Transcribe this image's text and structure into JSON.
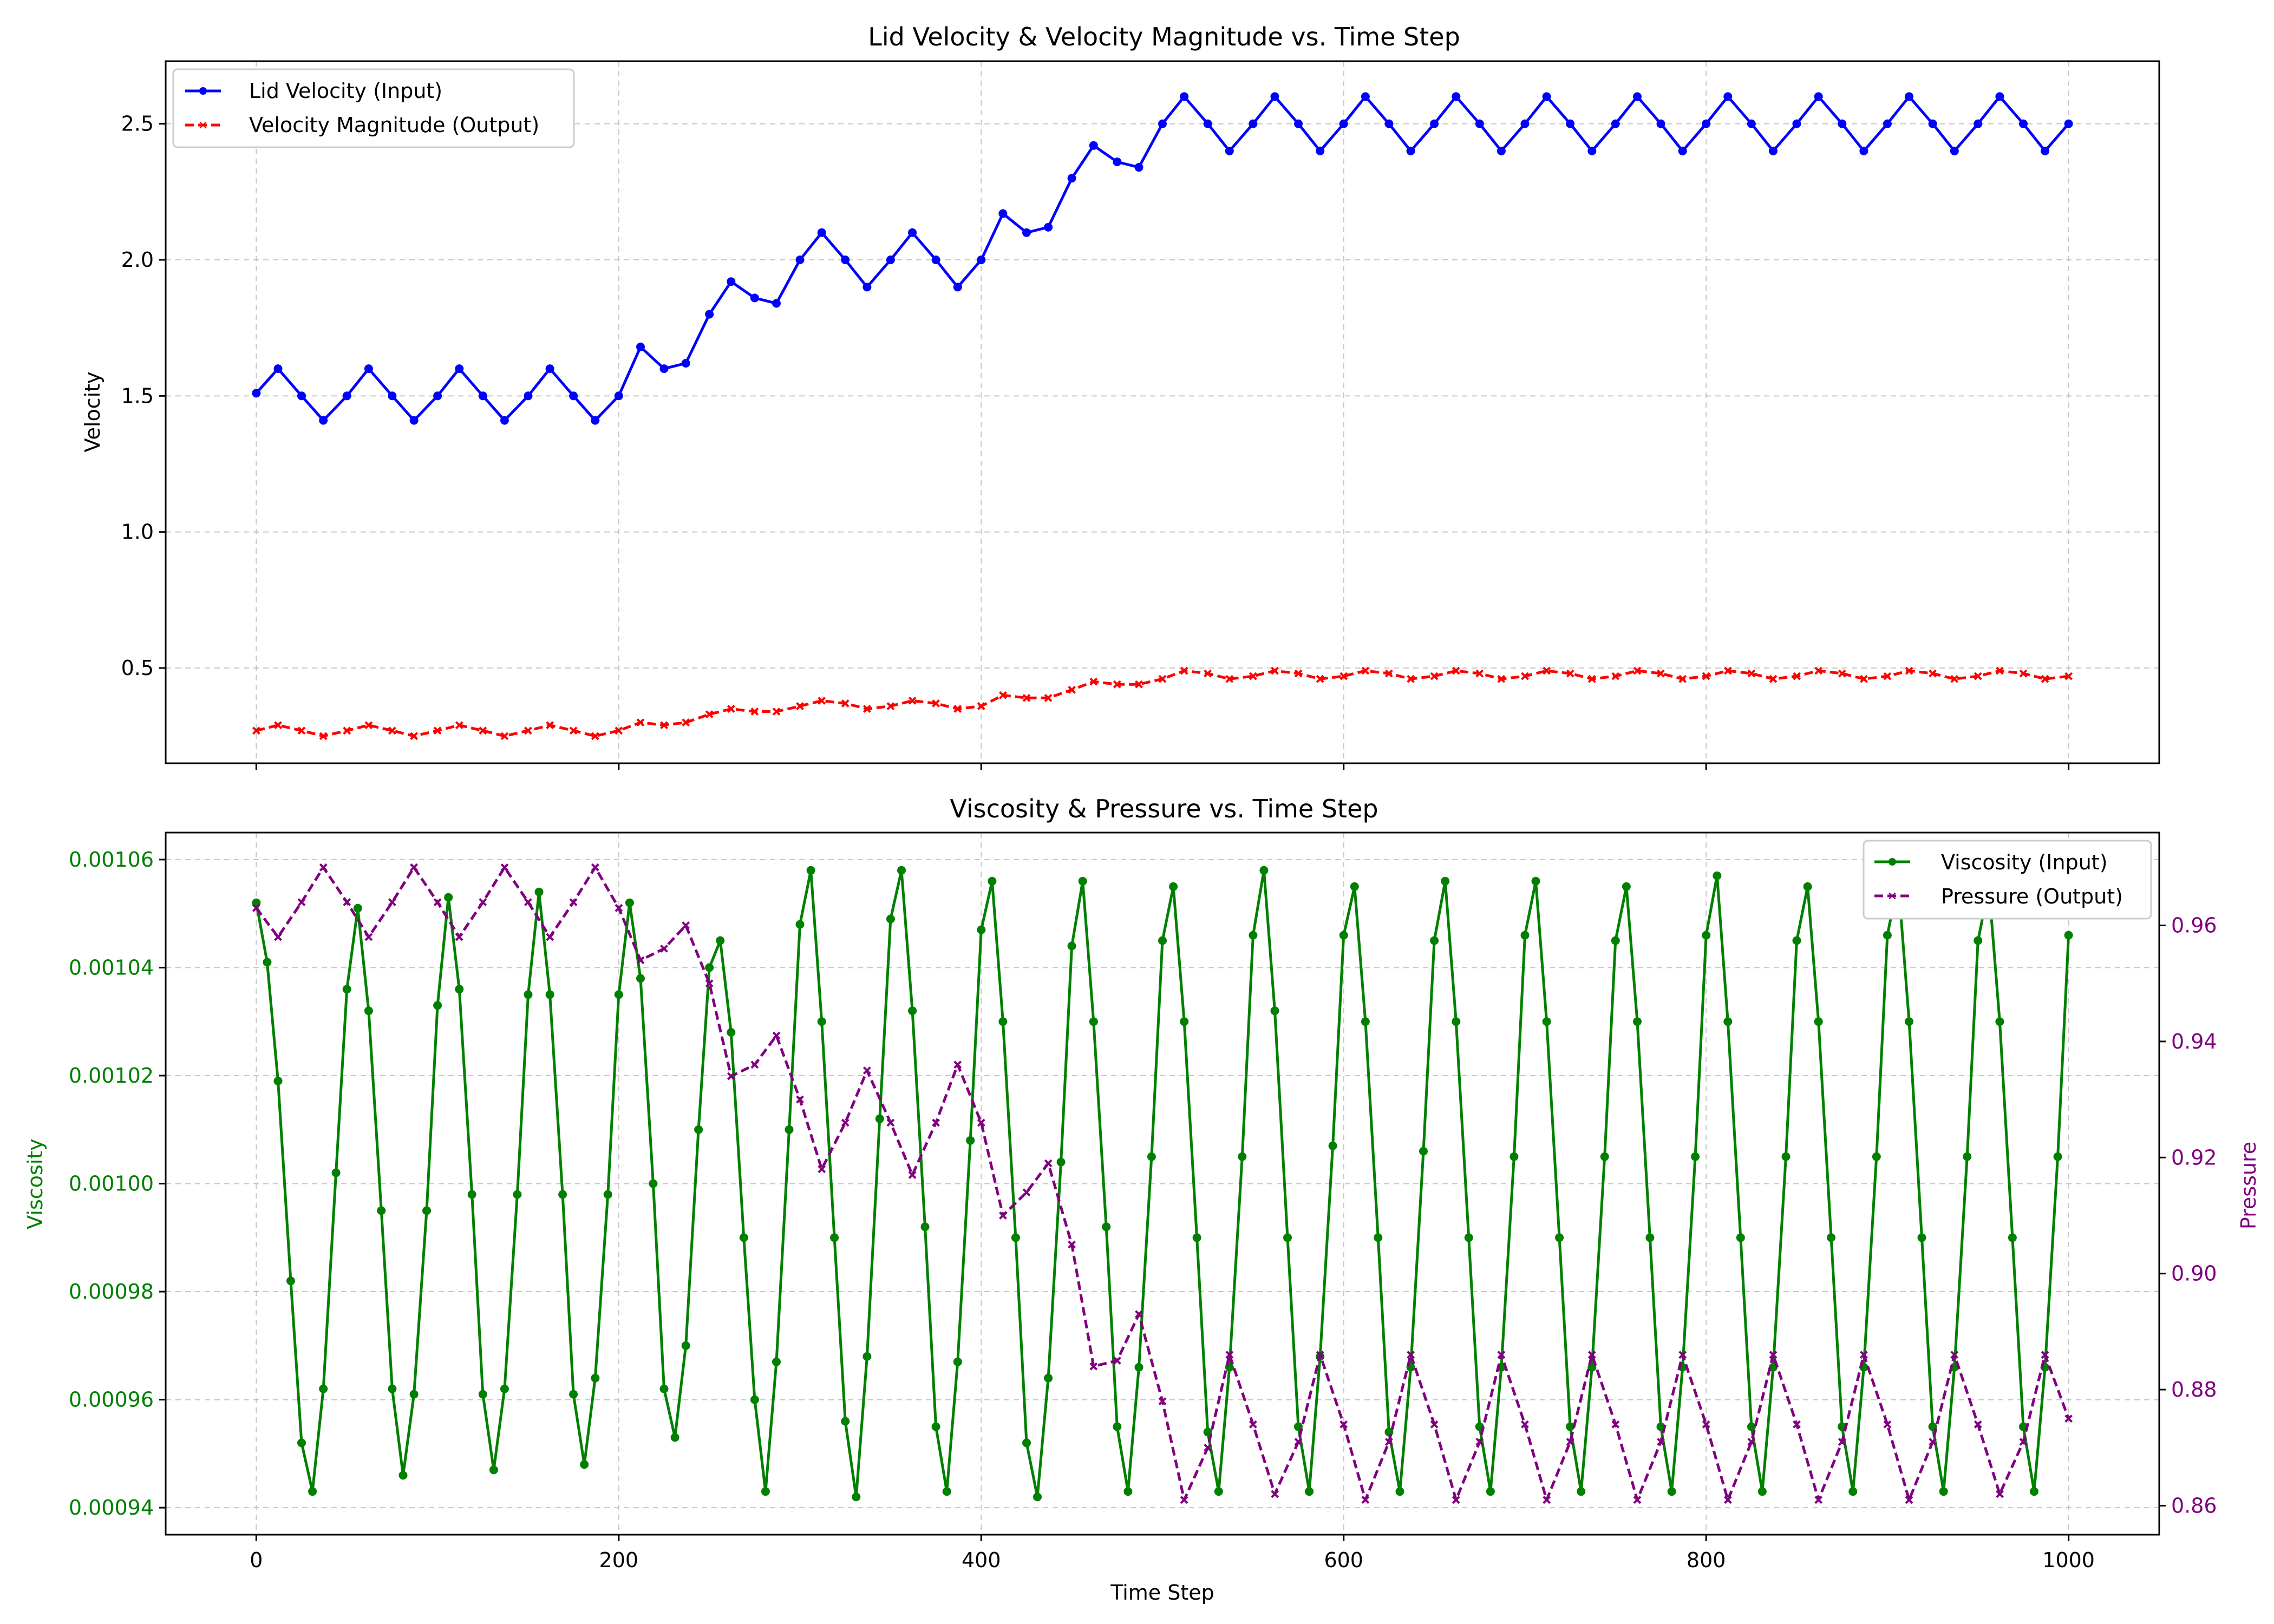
{
  "chart_data": [
    {
      "type": "line",
      "title": "Lid Velocity & Velocity Magnitude vs. Time Step",
      "xlabel": "",
      "ylabel": "Velocity",
      "xlim": [
        -50,
        1050
      ],
      "ylim": [
        0.15,
        2.73
      ],
      "xticks": [
        0,
        200,
        400,
        600,
        800,
        1000
      ],
      "yticks": [
        0.5,
        1.0,
        1.5,
        2.0,
        2.5
      ],
      "ytick_labels": [
        "0.5",
        "1.0",
        "1.5",
        "2.0",
        "2.5"
      ],
      "grid": true,
      "legend": "top-left",
      "series": [
        {
          "name": "Lid Velocity (Input)",
          "color": "#0000ff",
          "marker": "dot",
          "linestyle": "solid",
          "x": [
            0,
            12,
            25,
            37,
            50,
            62,
            75,
            87,
            100,
            112,
            125,
            137,
            150,
            162,
            175,
            187,
            200,
            212,
            225,
            237,
            250,
            262,
            275,
            287,
            300,
            312,
            325,
            337,
            350,
            362,
            375,
            387,
            400,
            412,
            425,
            437,
            450,
            462,
            475,
            487,
            500,
            512,
            525,
            537,
            550,
            562,
            575,
            587,
            600,
            612,
            625,
            637,
            650,
            662,
            675,
            687,
            700,
            712,
            725,
            737,
            750,
            762,
            775,
            787,
            800,
            812,
            825,
            837,
            850,
            862,
            875,
            887,
            900,
            912,
            925,
            937,
            950,
            962,
            975,
            987,
            1000
          ],
          "values": [
            1.51,
            1.6,
            1.5,
            1.41,
            1.5,
            1.6,
            1.5,
            1.41,
            1.5,
            1.6,
            1.5,
            1.41,
            1.5,
            1.6,
            1.5,
            1.41,
            1.5,
            1.68,
            1.6,
            1.62,
            1.8,
            1.92,
            1.86,
            1.84,
            2.0,
            2.1,
            2.0,
            1.9,
            2.0,
            2.1,
            2.0,
            1.9,
            2.0,
            2.17,
            2.1,
            2.12,
            2.3,
            2.42,
            2.36,
            2.34,
            2.5,
            2.6,
            2.5,
            2.4,
            2.5,
            2.6,
            2.5,
            2.4,
            2.5,
            2.6,
            2.5,
            2.4,
            2.5,
            2.6,
            2.5,
            2.4,
            2.5,
            2.6,
            2.5,
            2.4,
            2.5,
            2.6,
            2.5,
            2.4,
            2.5,
            2.6,
            2.5,
            2.4,
            2.5,
            2.6,
            2.5,
            2.4,
            2.5,
            2.6,
            2.5,
            2.4,
            2.5,
            2.6,
            2.5,
            2.4,
            2.5
          ]
        },
        {
          "name": "Velocity Magnitude (Output)",
          "color": "#ff0000",
          "marker": "x",
          "linestyle": "dashed",
          "x": [
            0,
            12,
            25,
            37,
            50,
            62,
            75,
            87,
            100,
            112,
            125,
            137,
            150,
            162,
            175,
            187,
            200,
            212,
            225,
            237,
            250,
            262,
            275,
            287,
            300,
            312,
            325,
            337,
            350,
            362,
            375,
            387,
            400,
            412,
            425,
            437,
            450,
            462,
            475,
            487,
            500,
            512,
            525,
            537,
            550,
            562,
            575,
            587,
            600,
            612,
            625,
            637,
            650,
            662,
            675,
            687,
            700,
            712,
            725,
            737,
            750,
            762,
            775,
            787,
            800,
            812,
            825,
            837,
            850,
            862,
            875,
            887,
            900,
            912,
            925,
            937,
            950,
            962,
            975,
            987,
            1000
          ],
          "values": [
            0.27,
            0.29,
            0.27,
            0.25,
            0.27,
            0.29,
            0.27,
            0.25,
            0.27,
            0.29,
            0.27,
            0.25,
            0.27,
            0.29,
            0.27,
            0.25,
            0.27,
            0.3,
            0.29,
            0.3,
            0.33,
            0.35,
            0.34,
            0.34,
            0.36,
            0.38,
            0.37,
            0.35,
            0.36,
            0.38,
            0.37,
            0.35,
            0.36,
            0.4,
            0.39,
            0.39,
            0.42,
            0.45,
            0.44,
            0.44,
            0.46,
            0.49,
            0.48,
            0.46,
            0.47,
            0.49,
            0.48,
            0.46,
            0.47,
            0.49,
            0.48,
            0.46,
            0.47,
            0.49,
            0.48,
            0.46,
            0.47,
            0.49,
            0.48,
            0.46,
            0.47,
            0.49,
            0.48,
            0.46,
            0.47,
            0.49,
            0.48,
            0.46,
            0.47,
            0.49,
            0.48,
            0.46,
            0.47,
            0.49,
            0.48,
            0.46,
            0.47,
            0.49,
            0.48,
            0.46,
            0.47
          ]
        }
      ]
    },
    {
      "type": "line",
      "title": "Viscosity & Pressure vs. Time Step",
      "xlabel": "Time Step",
      "ylabel": "Viscosity",
      "y2label": "Pressure",
      "xlim": [
        -50,
        1050
      ],
      "ylim": [
        0.000935,
        0.001065
      ],
      "y2lim": [
        0.855,
        0.976
      ],
      "xticks": [
        0,
        200,
        400,
        600,
        800,
        1000
      ],
      "yticks": [
        0.00094,
        0.00096,
        0.00098,
        0.001,
        0.00102,
        0.00104,
        0.00106
      ],
      "ytick_labels": [
        "0.00094",
        "0.00096",
        "0.00098",
        "0.00100",
        "0.00102",
        "0.00104",
        "0.00106"
      ],
      "y2ticks": [
        0.86,
        0.88,
        0.9,
        0.92,
        0.94,
        0.96
      ],
      "y2tick_labels": [
        "0.86",
        "0.88",
        "0.90",
        "0.92",
        "0.94",
        "0.96"
      ],
      "grid": true,
      "legend": "top-right",
      "series": [
        {
          "name": "Viscosity (Input)",
          "axis": "left",
          "color": "#008000",
          "marker": "dot",
          "linestyle": "solid",
          "x": [
            0,
            6,
            12,
            19,
            25,
            31,
            37,
            44,
            50,
            56,
            62,
            69,
            75,
            81,
            87,
            94,
            100,
            106,
            112,
            119,
            125,
            131,
            137,
            144,
            150,
            156,
            162,
            169,
            175,
            181,
            187,
            194,
            200,
            206,
            212,
            219,
            225,
            231,
            237,
            244,
            250,
            256,
            262,
            269,
            275,
            281,
            287,
            294,
            300,
            306,
            312,
            319,
            325,
            331,
            337,
            344,
            350,
            356,
            362,
            369,
            375,
            381,
            387,
            394,
            400,
            406,
            412,
            419,
            425,
            431,
            437,
            444,
            450,
            456,
            462,
            469,
            475,
            481,
            487,
            494,
            500,
            506,
            512,
            519,
            525,
            531,
            537,
            544,
            550,
            556,
            562,
            569,
            575,
            581,
            587,
            594,
            600,
            606,
            612,
            619,
            625,
            631,
            637,
            644,
            650,
            656,
            662,
            669,
            675,
            681,
            687,
            694,
            700,
            706,
            712,
            719,
            725,
            731,
            737,
            744,
            750,
            756,
            762,
            769,
            775,
            781,
            787,
            794,
            800,
            806,
            812,
            819,
            825,
            831,
            837,
            844,
            850,
            856,
            862,
            869,
            875,
            881,
            887,
            894,
            900,
            906,
            912,
            919,
            925,
            931,
            937,
            944,
            950,
            956,
            962,
            969,
            975,
            981,
            987,
            994,
            1000
          ],
          "values": [
            0.001052,
            0.001041,
            0.001019,
            0.000982,
            0.000952,
            0.000943,
            0.000962,
            0.001002,
            0.001036,
            0.001051,
            0.001032,
            0.000995,
            0.000962,
            0.000946,
            0.000961,
            0.000995,
            0.001033,
            0.001053,
            0.001036,
            0.000998,
            0.000961,
            0.000947,
            0.000962,
            0.000998,
            0.001035,
            0.001054,
            0.001035,
            0.000998,
            0.000961,
            0.000948,
            0.000964,
            0.000998,
            0.001035,
            0.001052,
            0.001038,
            0.001,
            0.000962,
            0.000953,
            0.00097,
            0.00101,
            0.00104,
            0.001045,
            0.001028,
            0.00099,
            0.00096,
            0.000943,
            0.000967,
            0.00101,
            0.001048,
            0.001058,
            0.00103,
            0.00099,
            0.000956,
            0.000942,
            0.000968,
            0.001012,
            0.001049,
            0.001058,
            0.001032,
            0.000992,
            0.000955,
            0.000943,
            0.000967,
            0.001008,
            0.001047,
            0.001056,
            0.00103,
            0.00099,
            0.000952,
            0.000942,
            0.000964,
            0.001004,
            0.001044,
            0.001056,
            0.00103,
            0.000992,
            0.000955,
            0.000943,
            0.000966,
            0.001005,
            0.001045,
            0.001055,
            0.00103,
            0.00099,
            0.000954,
            0.000943,
            0.000966,
            0.001005,
            0.001046,
            0.001058,
            0.001032,
            0.00099,
            0.000955,
            0.000943,
            0.000968,
            0.001007,
            0.001046,
            0.001055,
            0.00103,
            0.00099,
            0.000954,
            0.000943,
            0.000966,
            0.001006,
            0.001045,
            0.001056,
            0.00103,
            0.00099,
            0.000955,
            0.000943,
            0.000966,
            0.001005,
            0.001046,
            0.001056,
            0.00103,
            0.00099,
            0.000955,
            0.000943,
            0.000966,
            0.001005,
            0.001045,
            0.001055,
            0.00103,
            0.00099,
            0.000955,
            0.000943,
            0.000966,
            0.001005,
            0.001046,
            0.001057,
            0.00103,
            0.00099,
            0.000955,
            0.000943,
            0.000966,
            0.001005,
            0.001045,
            0.001055,
            0.00103,
            0.00099,
            0.000955,
            0.000943,
            0.000966,
            0.001005,
            0.001046,
            0.001056,
            0.00103,
            0.00099,
            0.000955,
            0.000943,
            0.000966,
            0.001005,
            0.001045,
            0.001055,
            0.00103,
            0.00099,
            0.000955,
            0.000943,
            0.000966,
            0.001005,
            0.001046
          ]
        },
        {
          "name": "Pressure (Output)",
          "axis": "right",
          "color": "#800080",
          "marker": "x",
          "linestyle": "dashed",
          "x": [
            0,
            12,
            25,
            37,
            50,
            62,
            75,
            87,
            100,
            112,
            125,
            137,
            150,
            162,
            175,
            187,
            200,
            212,
            225,
            237,
            250,
            262,
            275,
            287,
            300,
            312,
            325,
            337,
            350,
            362,
            375,
            387,
            400,
            412,
            425,
            437,
            450,
            462,
            475,
            487,
            500,
            512,
            525,
            537,
            550,
            562,
            575,
            587,
            600,
            612,
            625,
            637,
            650,
            662,
            675,
            687,
            700,
            712,
            725,
            737,
            750,
            762,
            775,
            787,
            800,
            812,
            825,
            837,
            850,
            862,
            875,
            887,
            900,
            912,
            925,
            937,
            950,
            962,
            975,
            987,
            1000
          ],
          "values": [
            0.963,
            0.958,
            0.964,
            0.97,
            0.964,
            0.958,
            0.964,
            0.97,
            0.964,
            0.958,
            0.964,
            0.97,
            0.964,
            0.958,
            0.964,
            0.97,
            0.963,
            0.954,
            0.956,
            0.96,
            0.95,
            0.934,
            0.936,
            0.941,
            0.93,
            0.918,
            0.926,
            0.935,
            0.926,
            0.917,
            0.926,
            0.936,
            0.926,
            0.91,
            0.914,
            0.919,
            0.905,
            0.884,
            0.885,
            0.893,
            0.878,
            0.861,
            0.87,
            0.886,
            0.874,
            0.862,
            0.871,
            0.886,
            0.874,
            0.861,
            0.871,
            0.886,
            0.874,
            0.861,
            0.871,
            0.886,
            0.874,
            0.861,
            0.871,
            0.886,
            0.874,
            0.861,
            0.871,
            0.886,
            0.874,
            0.861,
            0.871,
            0.886,
            0.874,
            0.861,
            0.871,
            0.886,
            0.874,
            0.861,
            0.871,
            0.886,
            0.874,
            0.862,
            0.871,
            0.886,
            0.875
          ]
        }
      ]
    }
  ]
}
